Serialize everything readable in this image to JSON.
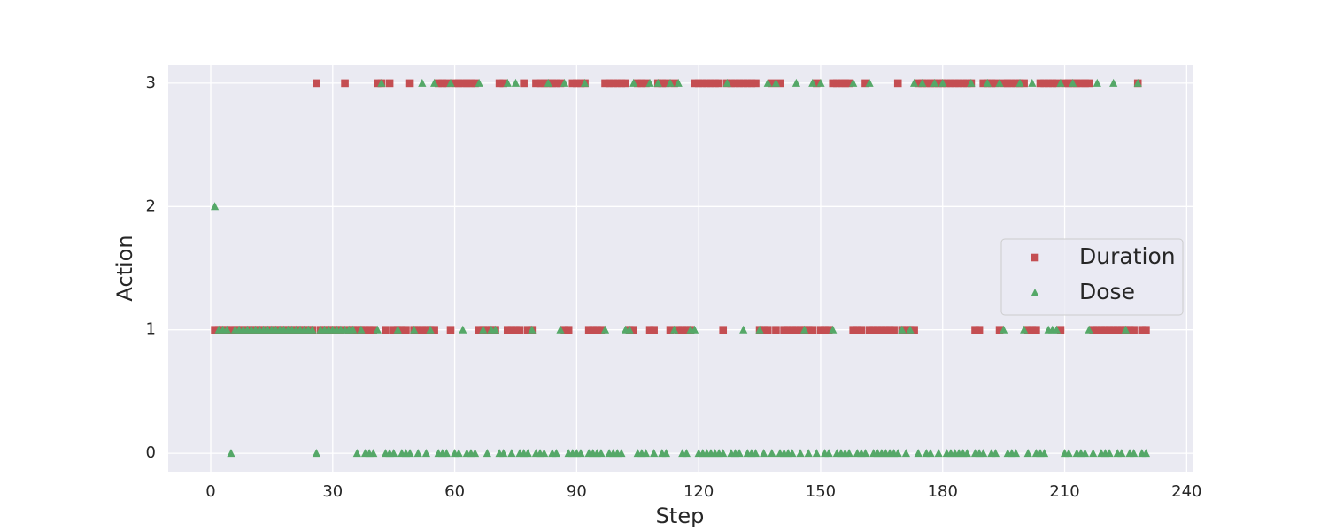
{
  "chart_data": {
    "type": "scatter",
    "xlabel": "Step",
    "ylabel": "Action",
    "xlim": [
      -10.45,
      241.45
    ],
    "ylim": [
      -0.15,
      3.15
    ],
    "xticks": [
      0,
      30,
      60,
      90,
      120,
      150,
      180,
      210,
      240
    ],
    "yticks": [
      0,
      1,
      2,
      3
    ],
    "grid": true,
    "legend": "center right",
    "x": [
      1,
      2,
      3,
      4,
      5,
      6,
      7,
      8,
      9,
      10,
      11,
      12,
      13,
      14,
      15,
      16,
      17,
      18,
      19,
      20,
      21,
      22,
      23,
      24,
      25,
      26,
      27,
      28,
      29,
      30,
      31,
      32,
      33,
      34,
      35,
      36,
      37,
      38,
      39,
      40,
      41,
      42,
      43,
      44,
      45,
      46,
      47,
      48,
      49,
      50,
      51,
      52,
      53,
      54,
      55,
      56,
      57,
      58,
      59,
      60,
      61,
      62,
      63,
      64,
      65,
      66,
      67,
      68,
      69,
      70,
      71,
      72,
      73,
      74,
      75,
      76,
      77,
      78,
      79,
      80,
      81,
      82,
      83,
      84,
      85,
      86,
      87,
      88,
      89,
      90,
      91,
      92,
      93,
      94,
      95,
      96,
      97,
      98,
      99,
      100,
      101,
      102,
      103,
      104,
      105,
      106,
      107,
      108,
      109,
      110,
      111,
      112,
      113,
      114,
      115,
      116,
      117,
      118,
      119,
      120,
      121,
      122,
      123,
      124,
      125,
      126,
      127,
      128,
      129,
      130,
      131,
      132,
      133,
      134,
      135,
      136,
      137,
      138,
      139,
      140,
      141,
      142,
      143,
      144,
      145,
      146,
      147,
      148,
      149,
      150,
      151,
      152,
      153,
      154,
      155,
      156,
      157,
      158,
      159,
      160,
      161,
      162,
      163,
      164,
      165,
      166,
      167,
      168,
      169,
      170,
      171,
      172,
      173,
      174,
      175,
      176,
      177,
      178,
      179,
      180,
      181,
      182,
      183,
      184,
      185,
      186,
      187,
      188,
      189,
      190,
      191,
      192,
      193,
      194,
      195,
      196,
      197,
      198,
      199,
      200,
      201,
      202,
      203,
      204,
      205,
      206,
      207,
      208,
      209,
      210,
      211,
      212,
      213,
      214,
      215,
      216,
      217,
      218,
      219,
      220,
      221,
      222,
      223,
      224,
      225,
      226,
      227,
      228,
      229,
      230
    ],
    "series": [
      {
        "name": "Duration",
        "color": "#c44e52",
        "marker": "square",
        "values": [
          1,
          1,
          1,
          1,
          1,
          1,
          1,
          1,
          1,
          1,
          1,
          1,
          1,
          1,
          1,
          1,
          1,
          1,
          1,
          1,
          1,
          1,
          1,
          1,
          1,
          3,
          1,
          1,
          1,
          1,
          1,
          1,
          3,
          1,
          1,
          1,
          1,
          1,
          1,
          1,
          3,
          3,
          1,
          3,
          1,
          1,
          1,
          1,
          3,
          1,
          1,
          1,
          1,
          1,
          1,
          3,
          3,
          3,
          1,
          3,
          3,
          3,
          3,
          3,
          3,
          1,
          1,
          1,
          1,
          1,
          3,
          3,
          1,
          1,
          1,
          1,
          3,
          1,
          1,
          3,
          3,
          3,
          3,
          3,
          3,
          3,
          1,
          1,
          3,
          3,
          3,
          3,
          1,
          1,
          1,
          1,
          3,
          3,
          3,
          3,
          3,
          3,
          1,
          1,
          3,
          3,
          3,
          1,
          1,
          3,
          3,
          3,
          1,
          3,
          1,
          1,
          1,
          1,
          3,
          3,
          3,
          3,
          3,
          3,
          3,
          1,
          3,
          3,
          3,
          3,
          3,
          3,
          3,
          3,
          1,
          1,
          1,
          3,
          1,
          3,
          1,
          1,
          1,
          1,
          1,
          1,
          1,
          1,
          3,
          1,
          1,
          1,
          3,
          3,
          3,
          3,
          3,
          1,
          1,
          1,
          3,
          1,
          1,
          1,
          1,
          1,
          1,
          1,
          3,
          1,
          1,
          1,
          1,
          3,
          3,
          3,
          3,
          3,
          3,
          3,
          3,
          3,
          3,
          3,
          3,
          3,
          3,
          1,
          1,
          3,
          3,
          3,
          3,
          1,
          3,
          3,
          3,
          3,
          3,
          3,
          1,
          1,
          1,
          3,
          3,
          3,
          3,
          3,
          1,
          3,
          3,
          3,
          3,
          3,
          3,
          3,
          1,
          1,
          1,
          1,
          1,
          1,
          1,
          1,
          1,
          1,
          1,
          3,
          1,
          1
        ]
      },
      {
        "name": "Dose",
        "color": "#55a868",
        "marker": "triangle",
        "values": [
          2,
          1,
          1,
          1,
          0,
          1,
          1,
          1,
          1,
          1,
          1,
          1,
          1,
          1,
          1,
          1,
          1,
          1,
          1,
          1,
          1,
          1,
          1,
          1,
          1,
          0,
          1,
          1,
          1,
          1,
          1,
          1,
          1,
          1,
          1,
          0,
          1,
          0,
          0,
          0,
          1,
          3,
          0,
          0,
          0,
          1,
          0,
          0,
          0,
          1,
          0,
          3,
          0,
          1,
          3,
          0,
          0,
          0,
          3,
          0,
          0,
          1,
          0,
          0,
          0,
          3,
          1,
          0,
          1,
          1,
          0,
          0,
          3,
          0,
          3,
          0,
          0,
          0,
          1,
          0,
          0,
          0,
          3,
          0,
          0,
          1,
          3,
          0,
          0,
          0,
          0,
          3,
          0,
          0,
          0,
          0,
          1,
          0,
          0,
          0,
          0,
          1,
          1,
          3,
          0,
          0,
          0,
          3,
          0,
          3,
          0,
          0,
          3,
          1,
          3,
          0,
          0,
          1,
          1,
          0,
          0,
          0,
          0,
          0,
          0,
          0,
          3,
          0,
          0,
          0,
          1,
          0,
          0,
          0,
          1,
          0,
          3,
          0,
          3,
          0,
          0,
          0,
          0,
          3,
          0,
          1,
          0,
          3,
          0,
          3,
          0,
          0,
          1,
          0,
          0,
          0,
          0,
          3,
          0,
          0,
          0,
          3,
          0,
          0,
          0,
          0,
          0,
          0,
          0,
          1,
          0,
          1,
          3,
          0,
          3,
          0,
          0,
          3,
          0,
          3,
          0,
          0,
          0,
          0,
          0,
          0,
          3,
          0,
          0,
          0,
          3,
          0,
          0,
          3,
          1,
          0,
          0,
          0,
          3,
          1,
          0,
          3,
          0,
          0,
          0,
          1,
          1,
          1,
          3,
          0,
          0,
          3,
          0,
          0,
          0,
          1,
          0,
          3,
          0,
          0,
          0,
          3,
          0,
          0,
          1,
          0,
          0,
          3,
          0,
          0
        ]
      }
    ]
  }
}
